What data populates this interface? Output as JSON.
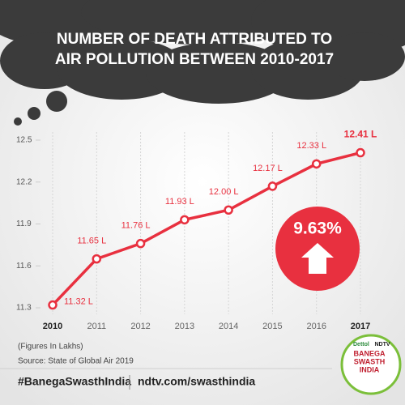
{
  "chart_data": {
    "type": "line",
    "title": [
      "NUMBER OF DEATH ATTRIBUTED TO",
      "AIR POLLUTION BETWEEN 2010-2017"
    ],
    "categories": [
      "2010",
      "2011",
      "2012",
      "2013",
      "2014",
      "2015",
      "2016",
      "2017"
    ],
    "values": [
      11.32,
      11.65,
      11.76,
      11.93,
      12.0,
      12.17,
      12.33,
      12.41
    ],
    "value_labels": [
      "11.32 L",
      "11.65 L",
      "11.76 L",
      "11.93 L",
      "12.00 L",
      "12.17 L",
      "12.33 L",
      "12.41 L"
    ],
    "color": "#e8303f",
    "ylim": [
      11.3,
      12.5
    ],
    "yticks": [
      11.3,
      11.6,
      11.9,
      12.2,
      12.5
    ],
    "annotation": "9.63%",
    "note": "(Figures In Lakhs)",
    "source": "Source: State of Global Air 2019"
  },
  "footer": {
    "hashtag": "#BanegaSwasthIndia",
    "url": "ndtv.com/swasthindia"
  },
  "logo": {
    "brand": "Dettol",
    "network": "NDTV",
    "lines": [
      "BANEGA",
      "SWASTH",
      "INDIA"
    ]
  }
}
